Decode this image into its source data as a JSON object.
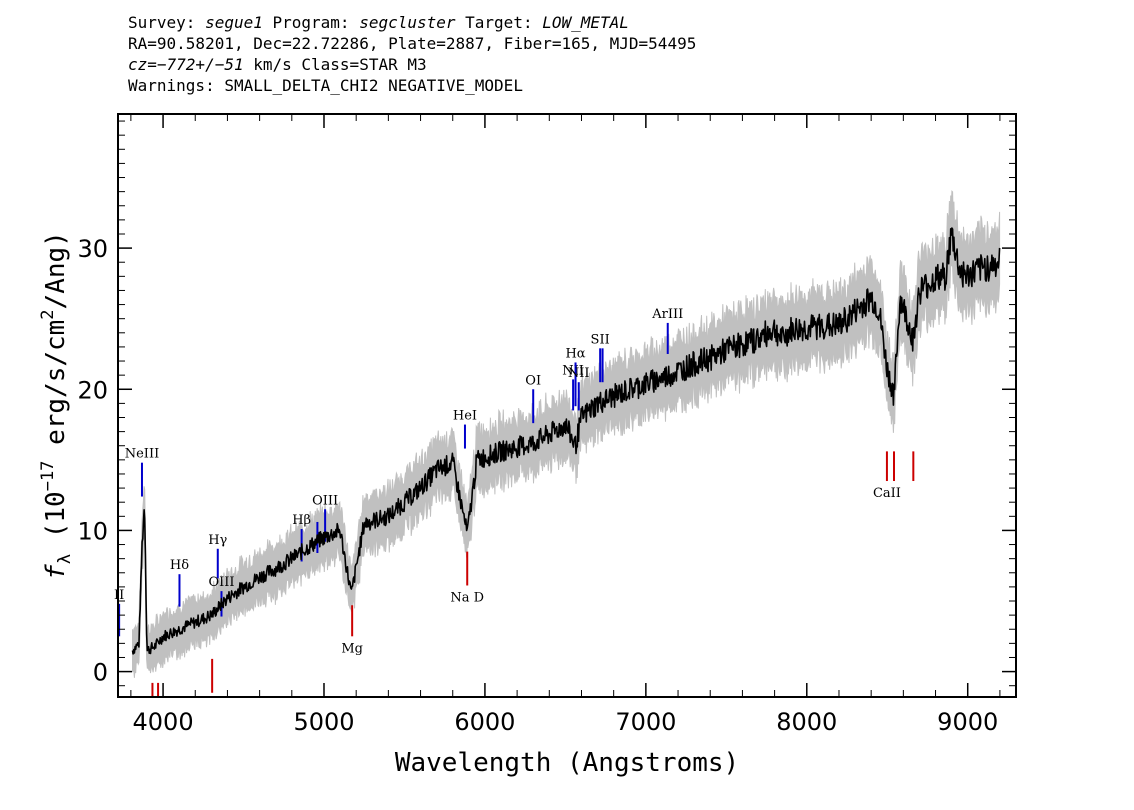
{
  "header": {
    "line1": {
      "survey_label": "Survey: ",
      "survey": "segue1",
      "program_label": " Program: ",
      "program": "segcluster",
      "target_label": " Target: ",
      "target": "LOW_METAL"
    },
    "line2": "RA=90.58201, Dec=22.72286, Plate=2887, Fiber=165, MJD=54495",
    "line3": {
      "cz": "cz=−772+/−51",
      "rest": " km/s Class=STAR M3"
    },
    "line4": "Warnings: SMALL_DELTA_CHI2 NEGATIVE_MODEL"
  },
  "chart_data": {
    "type": "line",
    "xlabel": "Wavelength (Angstroms)",
    "ylabel_parts": {
      "f": "f",
      "sub": "λ",
      "pre": " (10",
      "exp1": "−17",
      "mid": " erg/s/cm",
      "exp2": "2",
      "post": "/Ang)"
    },
    "xlim": [
      3720,
      9300
    ],
    "ylim": [
      -1.8,
      39.5
    ],
    "xticks": [
      4000,
      5000,
      6000,
      7000,
      8000,
      9000
    ],
    "yticks": [
      0,
      10,
      20,
      30
    ],
    "xtick_labels": [
      "4000",
      "5000",
      "6000",
      "7000",
      "8000",
      "9000"
    ],
    "ytick_labels": [
      "0",
      "10",
      "20",
      "30"
    ],
    "series": [
      {
        "color": "#000000",
        "x": [
          3810,
          3850,
          3870,
          3885,
          3900,
          3950,
          4000,
          4100,
          4200,
          4300,
          4400,
          4500,
          4600,
          4700,
          4800,
          4900,
          5000,
          5100,
          5170,
          5250,
          5400,
          5500,
          5600,
          5700,
          5800,
          5890,
          5950,
          6100,
          6200,
          6300,
          6400,
          6500,
          6563,
          6600,
          6700,
          6800,
          6900,
          7000,
          7100,
          7200,
          7300,
          7400,
          7500,
          7600,
          7700,
          7800,
          7850,
          7900,
          8000,
          8100,
          8200,
          8300,
          8400,
          8450,
          8498,
          8542,
          8580,
          8662,
          8700,
          8800,
          8860,
          8900,
          8950,
          9000,
          9100,
          9200
        ],
        "y": [
          1.5,
          2.0,
          9.0,
          12.0,
          1.5,
          1.8,
          2.5,
          3.0,
          3.5,
          4.0,
          5.2,
          6.0,
          6.7,
          7.3,
          8.0,
          8.8,
          9.5,
          10.0,
          5.5,
          10.5,
          11.0,
          12.0,
          13.0,
          14.3,
          14.8,
          9.8,
          15.0,
          15.6,
          15.9,
          16.2,
          16.8,
          17.5,
          16.0,
          18.0,
          19.0,
          19.5,
          20.0,
          20.4,
          20.8,
          21.3,
          21.8,
          22.2,
          22.8,
          23.2,
          23.6,
          24.3,
          23.5,
          24.2,
          24.3,
          24.5,
          24.5,
          25.5,
          26.5,
          25.5,
          21.5,
          19.5,
          26.5,
          23.5,
          27.0,
          27.8,
          28.0,
          31.0,
          28.4,
          28.0,
          28.6,
          29.0
        ]
      }
    ],
    "error_band_color": "#c0c0c0",
    "lines": [
      {
        "name": "NeIII",
        "x": 3869,
        "y_top": 14.8,
        "y_bottom": 12.4,
        "color": "#0000cc"
      },
      {
        "name": "Hδ",
        "x": 4102,
        "y_top": 6.9,
        "y_bottom": 4.6,
        "color": "#0000cc"
      },
      {
        "name": "Hγ",
        "x": 4340,
        "y_top": 8.7,
        "y_bottom": 6.6,
        "color": "#0000cc"
      },
      {
        "name": "OIII",
        "x": 4363,
        "y_top": 5.7,
        "y_bottom": 3.9,
        "color": "#0000cc"
      },
      {
        "name": "Hβ",
        "x": 4861,
        "y_top": 10.1,
        "y_bottom": 7.8,
        "color": "#0000cc"
      },
      {
        "name": "",
        "x": 4959,
        "y_top": 10.6,
        "y_bottom": 8.4,
        "color": "#0000cc"
      },
      {
        "name": "OIII",
        "x": 5007,
        "y_top": 11.5,
        "y_bottom": 9.2,
        "color": "#0000cc"
      },
      {
        "name": "HeI",
        "x": 5876,
        "y_top": 17.5,
        "y_bottom": 15.8,
        "color": "#0000cc"
      },
      {
        "name": "OI",
        "x": 6300,
        "y_top": 20.0,
        "y_bottom": 17.6,
        "color": "#0000cc"
      },
      {
        "name": "NII",
        "x": 6548,
        "y_top": 20.7,
        "y_bottom": 18.5,
        "color": "#0000cc"
      },
      {
        "name": "Hα",
        "x": 6563,
        "y_top": 21.9,
        "y_bottom": 18.8,
        "color": "#0000cc"
      },
      {
        "name": "NII",
        "x": 6583,
        "y_top": 20.5,
        "y_bottom": 18.5,
        "color": "#0000cc"
      },
      {
        "name": "SII",
        "x": 6716,
        "y_top": 22.9,
        "y_bottom": 20.5,
        "color": "#0000cc"
      },
      {
        "name": "",
        "x": 6731,
        "y_top": 22.9,
        "y_bottom": 20.5,
        "color": "#0000cc"
      },
      {
        "name": "ArIII",
        "x": 7136,
        "y_top": 24.7,
        "y_bottom": 22.5,
        "color": "#0000cc"
      },
      {
        "name": "Na D",
        "x": 5890,
        "y_top": 8.5,
        "y_bottom": 6.1,
        "color": "#cc0000"
      },
      {
        "name": "Mg",
        "x": 5175,
        "y_top": 4.7,
        "y_bottom": 2.5,
        "color": "#cc0000"
      },
      {
        "name": "",
        "x": 4305,
        "y_top": 0.9,
        "y_bottom": -1.5,
        "color": "#cc0000"
      },
      {
        "name": "",
        "x": 3934,
        "y_top": -0.8,
        "y_bottom": -1.8,
        "color": "#cc0000"
      },
      {
        "name": "",
        "x": 3969,
        "y_top": -0.8,
        "y_bottom": -1.8,
        "color": "#cc0000"
      },
      {
        "name": "CaII",
        "x": 8498,
        "y_top": 15.6,
        "y_bottom": 13.5,
        "color": "#cc0000"
      },
      {
        "name": "",
        "x": 8542,
        "y_top": 15.6,
        "y_bottom": 13.5,
        "color": "#cc0000"
      },
      {
        "name": "",
        "x": 8662,
        "y_top": 15.6,
        "y_bottom": 13.5,
        "color": "#cc0000"
      },
      {
        "name": "II",
        "x": 3727,
        "y_top": 4.8,
        "y_bottom": 2.5,
        "color": "#0000cc"
      }
    ]
  }
}
